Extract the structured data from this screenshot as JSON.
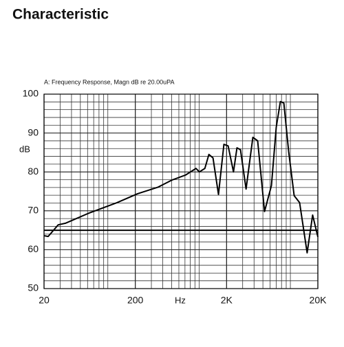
{
  "chart_data": {
    "type": "line",
    "title": "Characteristic",
    "subtitle": "A: Frequency Response, Magn dB re 20.00uPA",
    "y_label": "dB",
    "x_label": "Hz",
    "x": [
      20,
      22.2,
      28.6,
      34.3,
      62,
      126,
      212,
      356,
      503,
      711,
      924,
      1006,
      1156,
      1280,
      1420,
      1630,
      1870,
      2080,
      2380,
      2600,
      2840,
      3270,
      3880,
      4380,
      5210,
      6200,
      7000,
      7770,
      8480,
      9570,
      11000,
      12620,
      15260,
      17530,
      20000
    ],
    "values": [
      63.6,
      63.4,
      66.4,
      66.8,
      69.4,
      72.1,
      74.4,
      76.1,
      77.9,
      79.2,
      80.9,
      80,
      80.9,
      84.5,
      83.6,
      74.2,
      87.1,
      86.7,
      80,
      86.2,
      85.7,
      75.6,
      88.9,
      88,
      69.8,
      76.5,
      91.5,
      98.1,
      97.7,
      85.3,
      73.9,
      72.1,
      59.2,
      68.9,
      63.3
    ],
    "color": "#000000",
    "xlog": true,
    "xlim": [
      20,
      20000
    ],
    "ylim": [
      50,
      100
    ],
    "xticks": [
      20,
      200,
      {
        "value": 2000,
        "label": "2K"
      },
      {
        "value": 20000,
        "label": "20K"
      }
    ],
    "yticks": [
      50,
      60,
      70,
      80,
      90,
      100
    ],
    "ygrid_step": 2,
    "reference_line": 65,
    "grid": true
  }
}
